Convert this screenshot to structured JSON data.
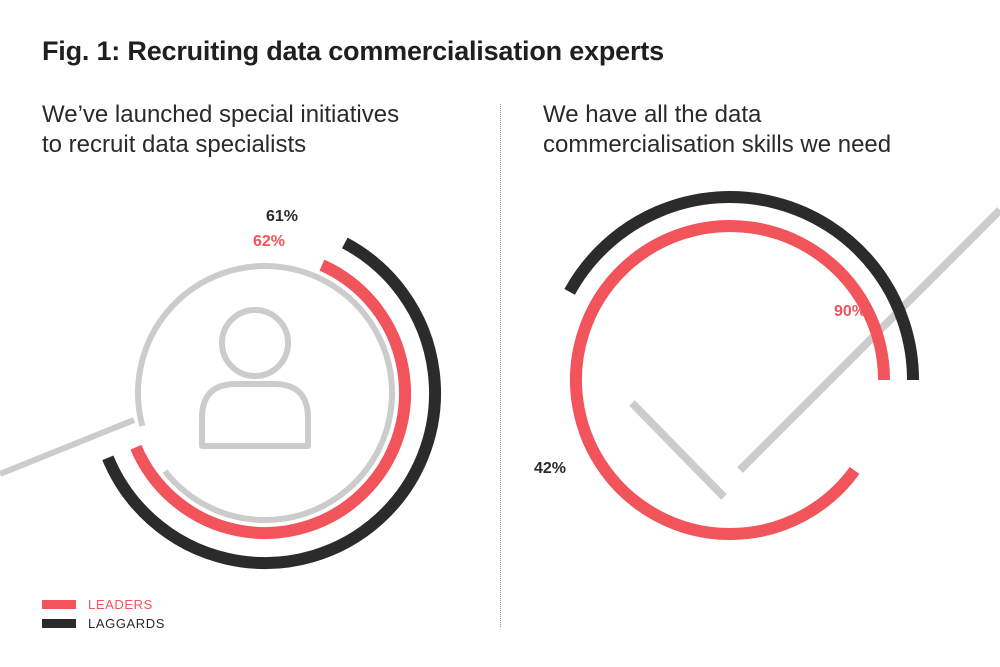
{
  "title": "Fig. 1: Recruiting data commercialisation experts",
  "colors": {
    "leaders": "#f2545b",
    "laggards": "#2b2b2b",
    "graphic": "#cccccc"
  },
  "legend": {
    "leaders_label": "LEADERS",
    "laggards_label": "LAGGARDS"
  },
  "chart_data": [
    {
      "type": "radial-bar",
      "title": "We’ve launched special initiatives to recruit data specialists",
      "title_lines": [
        "We’ve launched special initiatives",
        "to recruit data specialists"
      ],
      "icon": "person-icon",
      "series": [
        {
          "name": "LEADERS",
          "value": 62,
          "label": "62%"
        },
        {
          "name": "LAGGARDS",
          "value": 61,
          "label": "61%"
        }
      ],
      "unit": "%",
      "range": [
        0,
        100
      ]
    },
    {
      "type": "radial-bar",
      "title": "We have all the data commercialisation skills we need",
      "title_lines": [
        "We have all the data",
        "commercialisation skills we need"
      ],
      "icon": "checkmark-icon",
      "series": [
        {
          "name": "LEADERS",
          "value": 90,
          "label": "90%"
        },
        {
          "name": "LAGGARDS",
          "value": 42,
          "label": "42%"
        }
      ],
      "unit": "%",
      "range": [
        0,
        100
      ]
    }
  ]
}
